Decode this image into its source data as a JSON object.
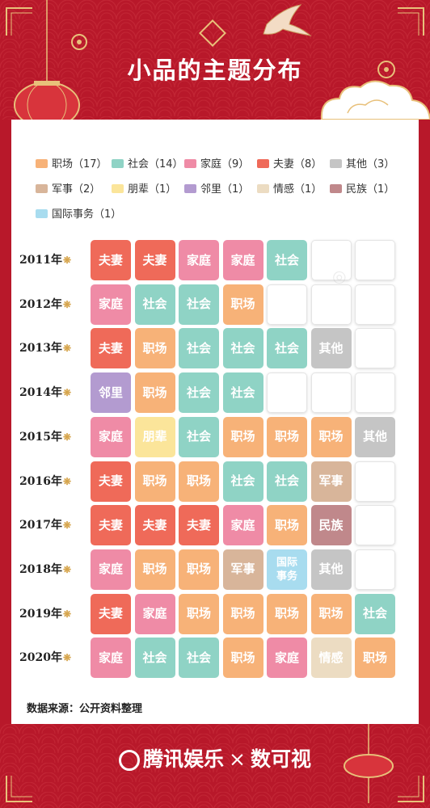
{
  "title": "小品的主题分布",
  "source": "数据来源：公开资料整理",
  "brand": {
    "left": "腾讯娱乐",
    "sep": "×",
    "right": "数可视"
  },
  "colors": {
    "职场": "#f7b278",
    "社会": "#8fd3c5",
    "家庭": "#ef8ba6",
    "夫妻": "#ef6a59",
    "其他": "#c5c5c5",
    "军事": "#d8b59a",
    "朋辈": "#fbe59a",
    "邻里": "#b39bd0",
    "情感": "#ecdcc2",
    "民族": "#c0888b",
    "国际事务": "#a8dcef"
  },
  "chart_data": {
    "type": "table",
    "legend": [
      {
        "name": "职场",
        "count": "（17）"
      },
      {
        "name": "社会",
        "count": "（14）"
      },
      {
        "name": "家庭",
        "count": "（9）"
      },
      {
        "name": "夫妻",
        "count": "（8）"
      },
      {
        "name": "其他",
        "count": "（3）"
      },
      {
        "name": "军事",
        "count": "（2）"
      },
      {
        "name": "朋辈",
        "count": "（1）"
      },
      {
        "name": "邻里",
        "count": "（1）"
      },
      {
        "name": "情感",
        "count": "（1）"
      },
      {
        "name": "民族",
        "count": "（1）"
      },
      {
        "name": "国际事务",
        "count": "（1）"
      }
    ],
    "columns": 7,
    "rows": [
      {
        "year": "2011年",
        "themes": [
          "夫妻",
          "夫妻",
          "家庭",
          "家庭",
          "社会"
        ]
      },
      {
        "year": "2012年",
        "themes": [
          "家庭",
          "社会",
          "社会",
          "职场"
        ]
      },
      {
        "year": "2013年",
        "themes": [
          "夫妻",
          "职场",
          "社会",
          "社会",
          "社会",
          "其他"
        ]
      },
      {
        "year": "2014年",
        "themes": [
          "邻里",
          "职场",
          "社会",
          "社会"
        ]
      },
      {
        "year": "2015年",
        "themes": [
          "家庭",
          "朋辈",
          "社会",
          "职场",
          "职场",
          "职场",
          "其他"
        ]
      },
      {
        "year": "2016年",
        "themes": [
          "夫妻",
          "职场",
          "职场",
          "社会",
          "社会",
          "军事"
        ]
      },
      {
        "year": "2017年",
        "themes": [
          "夫妻",
          "夫妻",
          "夫妻",
          "家庭",
          "职场",
          "民族"
        ]
      },
      {
        "year": "2018年",
        "themes": [
          "家庭",
          "职场",
          "职场",
          "军事",
          "国际事务",
          "其他"
        ]
      },
      {
        "year": "2019年",
        "themes": [
          "夫妻",
          "家庭",
          "职场",
          "职场",
          "职场",
          "职场",
          "社会"
        ]
      },
      {
        "year": "2020年",
        "themes": [
          "家庭",
          "社会",
          "社会",
          "职场",
          "家庭",
          "情感",
          "职场"
        ]
      }
    ]
  }
}
